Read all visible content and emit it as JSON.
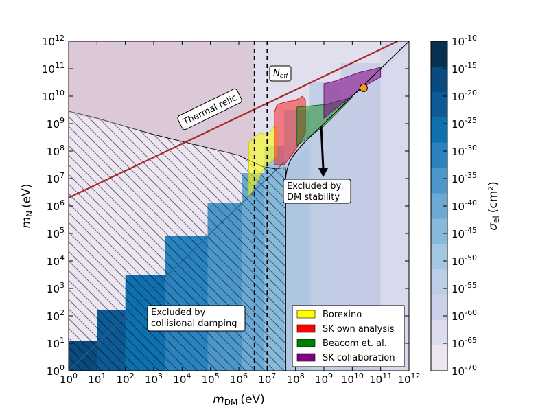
{
  "chart_data": {
    "type": "contour",
    "x_axis": {
      "label": "m",
      "label_subscript": "DM",
      "unit": "(eV)",
      "scale": "log",
      "range_exp": [
        0,
        12
      ],
      "tick_base": "10",
      "tick_exponents": [
        "0",
        "1",
        "2",
        "3",
        "4",
        "5",
        "6",
        "7",
        "8",
        "9",
        "10",
        "11",
        "12"
      ]
    },
    "y_axis": {
      "label": "m",
      "label_subscript": "N",
      "unit": "(eV)",
      "scale": "log",
      "range_exp": [
        0,
        12
      ],
      "tick_base": "10",
      "tick_exponents": [
        "0",
        "1",
        "2",
        "3",
        "4",
        "5",
        "6",
        "7",
        "8",
        "9",
        "10",
        "11",
        "12"
      ]
    },
    "colorbar": {
      "label": "σ",
      "label_subscript": "el",
      "unit": "(cm²)",
      "tick_base": "10",
      "tick_exponents": [
        "-10",
        "-15",
        "-20",
        "-25",
        "-30",
        "-35",
        "-40",
        "-45",
        "-50",
        "-55",
        "-60",
        "-65",
        "-70"
      ],
      "colors": [
        "#08304f",
        "#0b4a7e",
        "#0e5a96",
        "#0f70b0",
        "#2a82bf",
        "#4c97c9",
        "#6aa9d4",
        "#86b9dc",
        "#a3c6e2",
        "#bccfe8",
        "#ccd0e8",
        "#dcdcee",
        "#ebe6f1"
      ]
    },
    "annotations": {
      "thermal_relic": "Thermal relic",
      "neff": "N",
      "neff_sub": "eff",
      "dm_stability": [
        "Excluded by",
        "DM stability"
      ],
      "collisional_damping": [
        "Excluded by",
        "collisional damping"
      ]
    },
    "vertical_dashed_lines_exp": [
      6.55,
      7.0
    ],
    "benchmark_point": {
      "x_exp": 10.4,
      "y_exp": 10.3,
      "color": "#ff9a1a"
    },
    "legend": {
      "placement": "lower-right",
      "items": [
        {
          "label": "Borexino",
          "color": "#ffff00"
        },
        {
          "label": "SK own analysis",
          "color": "#ff0000"
        },
        {
          "label": "Beacom et. al.",
          "color": "#008000"
        },
        {
          "label": "SK collaboration",
          "color": "#800080"
        }
      ]
    },
    "line_colors": {
      "thermal_relic": "#a52a2a"
    }
  }
}
